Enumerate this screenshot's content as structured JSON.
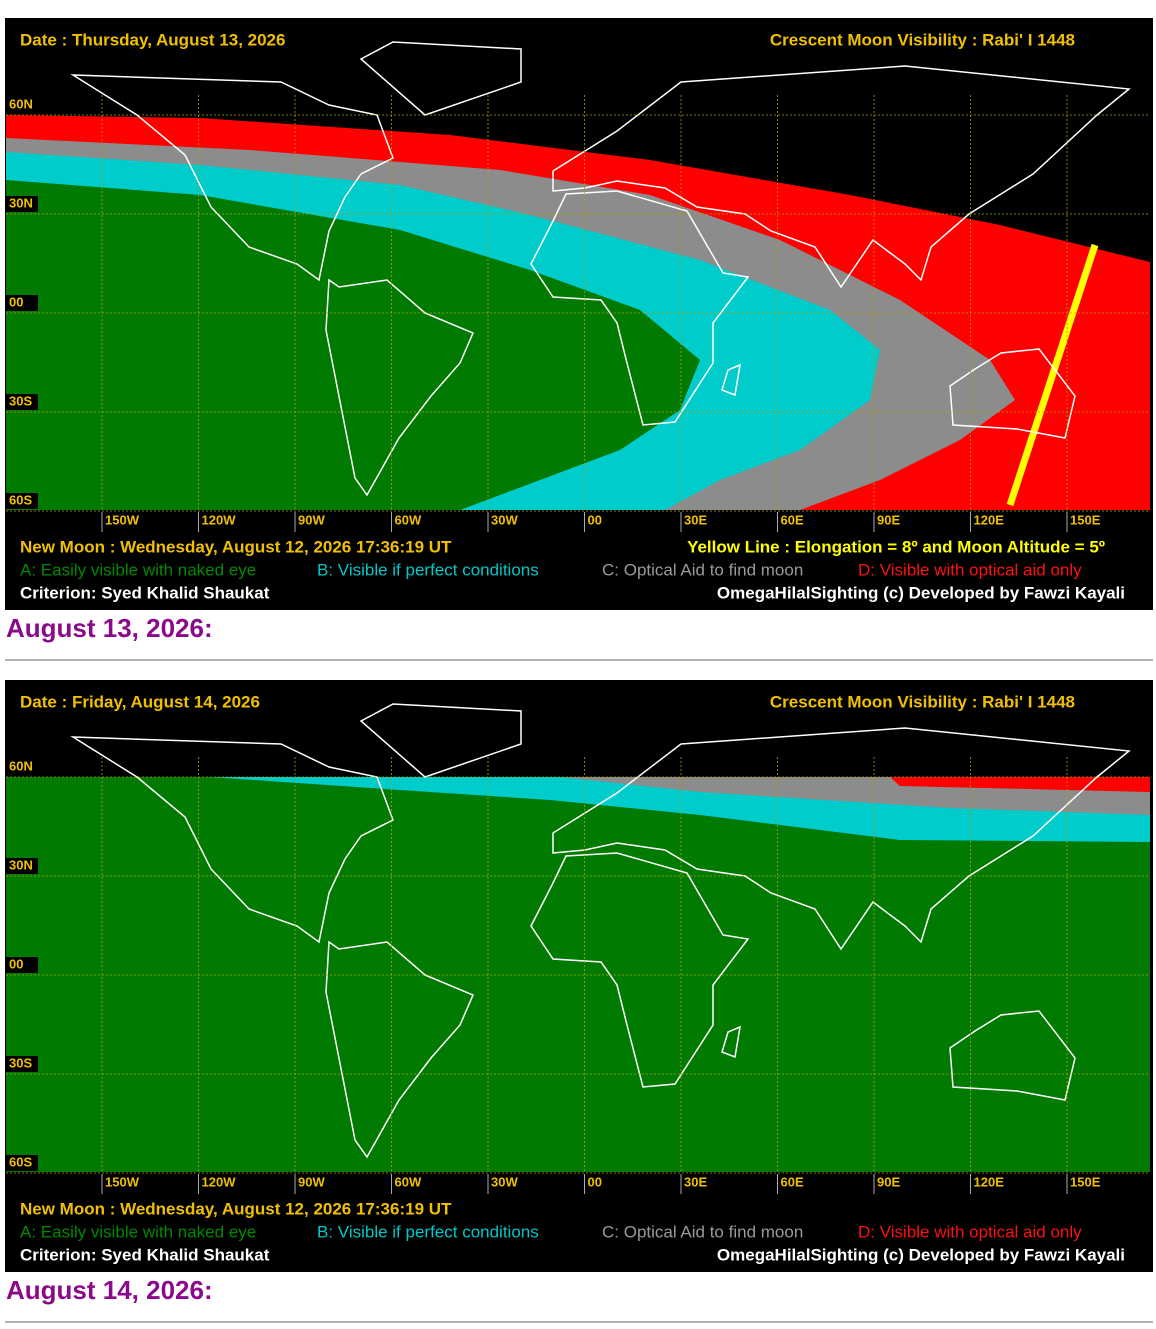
{
  "panels": [
    {
      "date": "Date : Thursday, August 13, 2026",
      "title": "Crescent Moon Visibility : Rabi' I  1448",
      "lat_labels": [
        "60N",
        "30N",
        "00",
        "30S",
        "60S"
      ],
      "lon_labels": [
        "150W",
        "120W",
        "90W",
        "60W",
        "30W",
        "00",
        "30E",
        "60E",
        "90E",
        "120E",
        "150E"
      ],
      "new_moon": "New Moon : Wednesday, August 12, 2026  17:36:19  UT",
      "yellow_line": "Yellow Line : Elongation = 8º  and Moon Altitude = 5º",
      "legend": [
        "A: Easily visible with naked eye",
        "B: Visible if perfect conditions",
        "C: Optical Aid to find moon",
        "D: Visible with optical aid only"
      ],
      "criterion": "Criterion: Syed Khalid Shaukat",
      "credit": "OmegaHilalSighting  (c)  Developed by Fawzi Kayali",
      "caption": "August 13, 2026:"
    },
    {
      "date": "Date : Friday, August 14, 2026",
      "title": "Crescent Moon Visibility : Rabi' I  1448",
      "lat_labels": [
        "60N",
        "30N",
        "00",
        "30S",
        "60S"
      ],
      "lon_labels": [
        "150W",
        "120W",
        "90W",
        "60W",
        "30W",
        "00",
        "30E",
        "60E",
        "90E",
        "120E",
        "150E"
      ],
      "new_moon": "New Moon : Wednesday, August 12, 2026  17:36:19  UT",
      "legend": [
        "A: Easily visible with naked eye",
        "B: Visible if perfect conditions",
        "C: Optical Aid to find moon",
        "D: Visible with optical aid only"
      ],
      "criterion": "Criterion: Syed Khalid Shaukat",
      "credit": "OmegaHilalSighting  (c)  Developed by Fawzi Kayali",
      "caption": "August 14, 2026:"
    }
  ]
}
